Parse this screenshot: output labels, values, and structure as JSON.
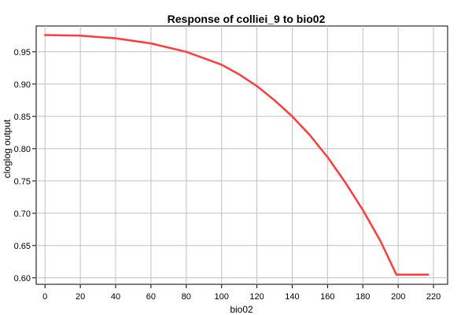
{
  "chart_data": {
    "type": "line",
    "title": "Response of colliei_9 to bio02",
    "xlabel": "bio02",
    "ylabel": "cloglog output",
    "xlim": [
      -5,
      228
    ],
    "ylim": [
      0.59,
      0.99
    ],
    "x_ticks": [
      0,
      20,
      40,
      60,
      80,
      100,
      120,
      140,
      160,
      180,
      200,
      220
    ],
    "y_ticks": [
      0.6,
      0.65,
      0.7,
      0.75,
      0.8,
      0.85,
      0.9,
      0.95
    ],
    "grid": true,
    "series": [
      {
        "color": "#ff3b3b",
        "x": [
          0,
          20,
          40,
          60,
          80,
          100,
          110,
          120,
          130,
          140,
          150,
          160,
          170,
          180,
          190,
          199,
          205,
          217
        ],
        "y": [
          0.976,
          0.975,
          0.971,
          0.963,
          0.95,
          0.93,
          0.915,
          0.897,
          0.875,
          0.85,
          0.821,
          0.787,
          0.748,
          0.705,
          0.657,
          0.605,
          0.605,
          0.605
        ]
      }
    ]
  }
}
